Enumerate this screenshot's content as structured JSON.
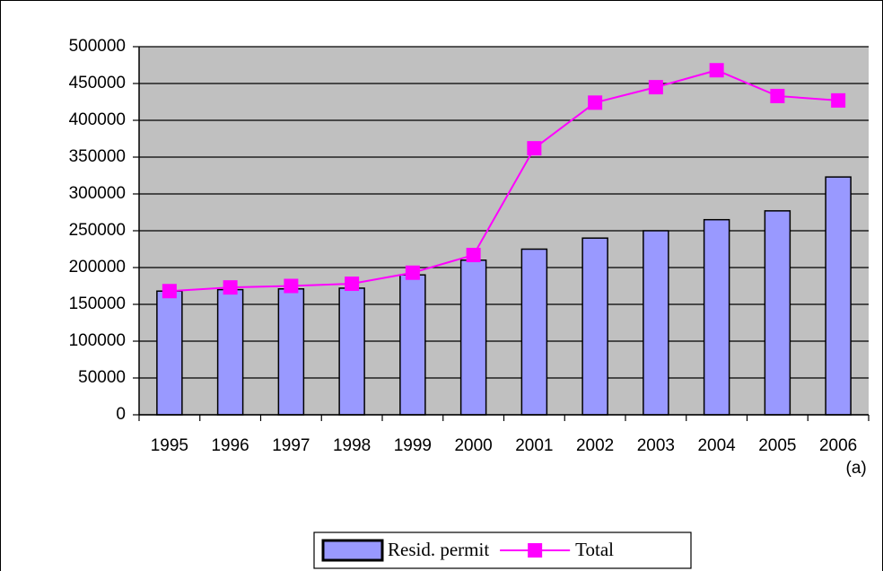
{
  "chart_data": {
    "type": "bar_line",
    "categories": [
      "1995",
      "1996",
      "1997",
      "1998",
      "1999",
      "2000",
      "2001",
      "2002",
      "2003",
      "2004",
      "2005",
      "2006\n(a)"
    ],
    "series": [
      {
        "name": "Resid. permit",
        "type": "bar",
        "color": "#9999ff",
        "values": [
          168000,
          170000,
          171000,
          172000,
          190000,
          210000,
          225000,
          240000,
          250000,
          265000,
          277000,
          323000
        ]
      },
      {
        "name": "Total",
        "type": "line",
        "color": "#ff00ff",
        "values": [
          168000,
          173000,
          175000,
          178000,
          193000,
          217000,
          362000,
          424000,
          445000,
          468000,
          433000,
          427000
        ]
      }
    ],
    "ylim": [
      0,
      500000
    ],
    "yticks": [
      0,
      50000,
      100000,
      150000,
      200000,
      250000,
      300000,
      350000,
      400000,
      450000,
      500000
    ],
    "grid": true,
    "legend": "bottom"
  }
}
